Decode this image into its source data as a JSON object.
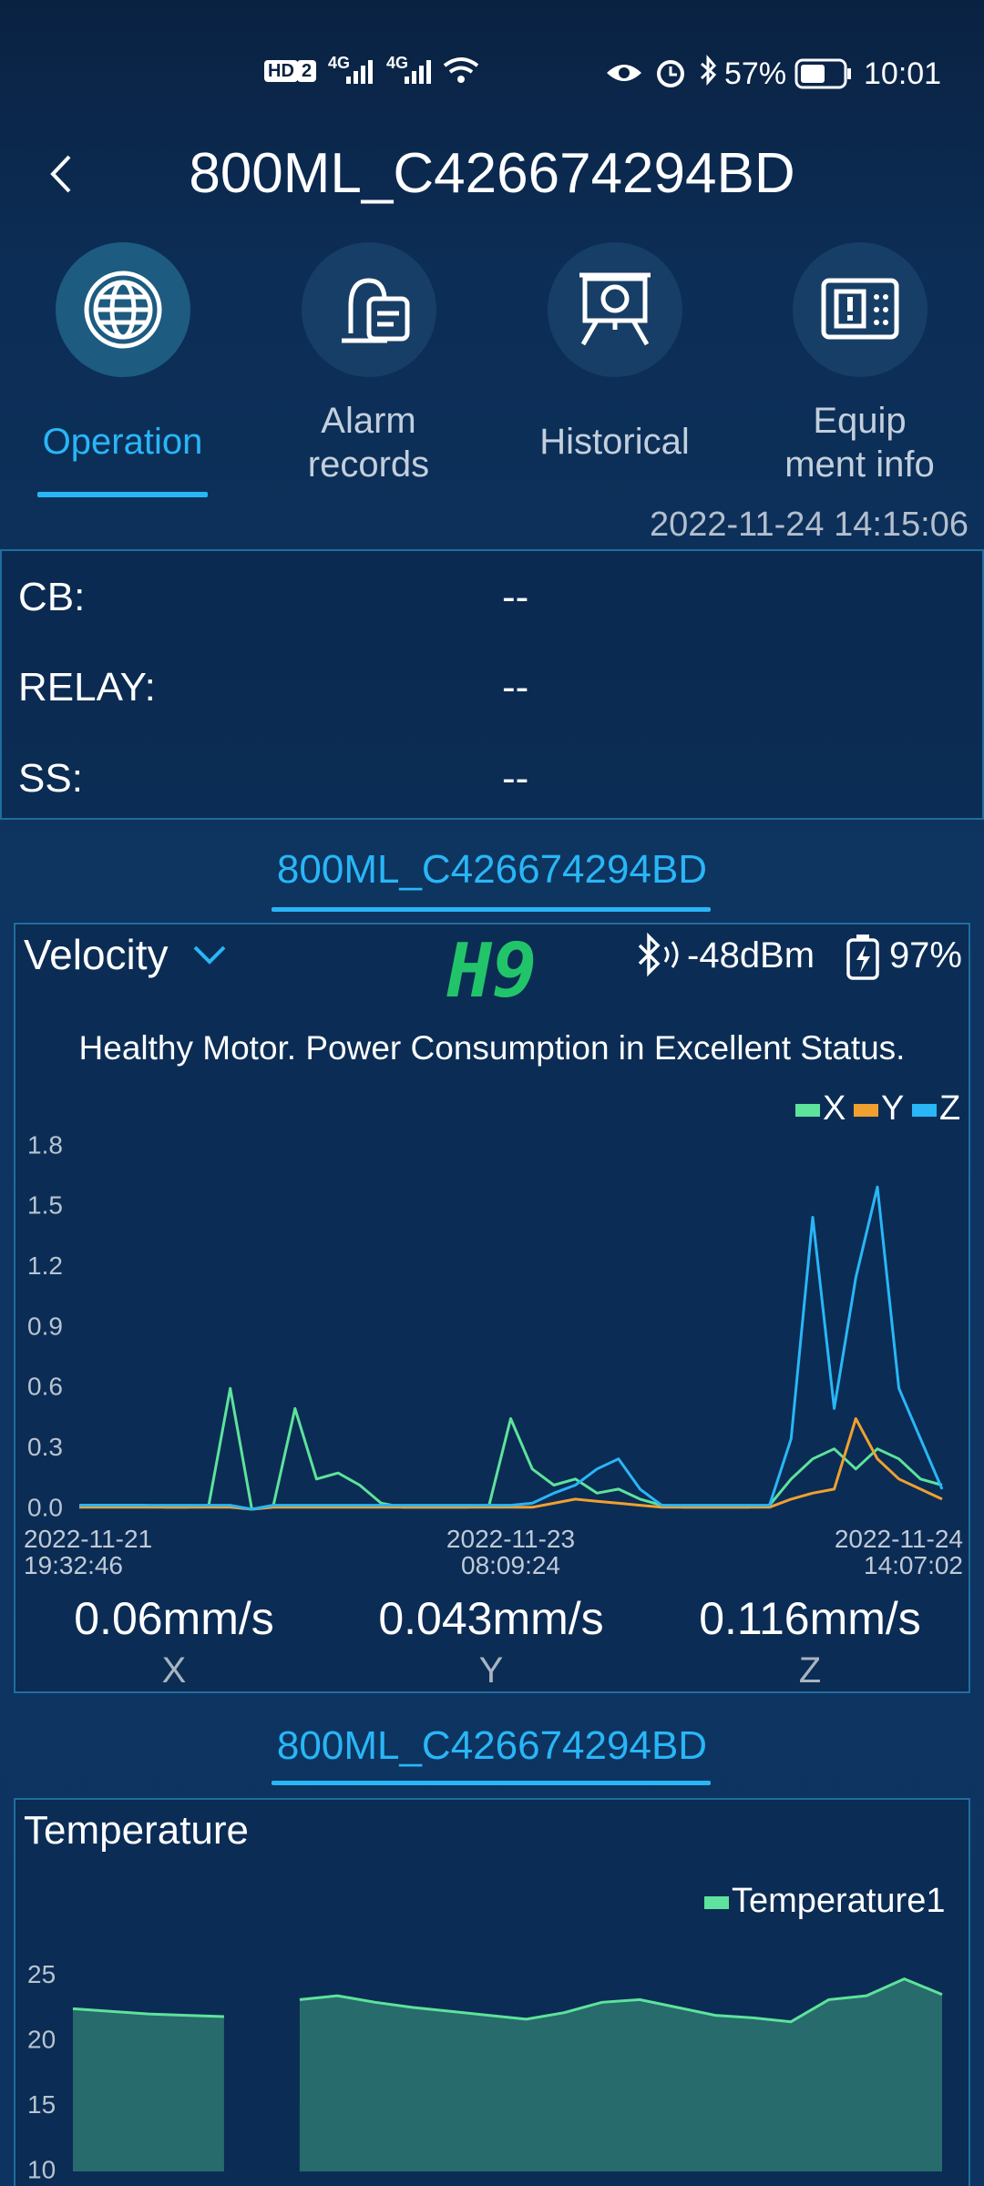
{
  "status_bar": {
    "network_labels": [
      "HD",
      "2",
      "4G",
      "4G"
    ],
    "battery": "57%",
    "time": "10:01"
  },
  "header": {
    "title": "800ML_C426674294BD"
  },
  "tabs": [
    {
      "label": "Operation"
    },
    {
      "label": "Alarm records"
    },
    {
      "label": "Historical"
    },
    {
      "label": "Equip ment info"
    }
  ],
  "timestamp": "2022-11-24 14:15:06",
  "status": [
    {
      "label": "CB:",
      "value": "--"
    },
    {
      "label": "RELAY:",
      "value": "--"
    },
    {
      "label": "SS:",
      "value": "--"
    }
  ],
  "velocity_panel": {
    "device": "800ML_C426674294BD",
    "mode": "Velocity",
    "code": "H9",
    "signal": "-48dBm",
    "battery": "97%",
    "message": "Healthy Motor. Power Consumption in Excellent Status.",
    "chart_data": {
      "type": "line",
      "categories": [
        "2022-11-21 19:32:46",
        null,
        null,
        null,
        null,
        null,
        null,
        null,
        null,
        null,
        null,
        null,
        null,
        null,
        null,
        null,
        null,
        null,
        null,
        null,
        "2022-11-23 08:09:24",
        null,
        null,
        null,
        null,
        null,
        null,
        null,
        null,
        null,
        null,
        null,
        null,
        null,
        null,
        null,
        null,
        null,
        null,
        null,
        "2022-11-24 14:07:02"
      ],
      "series": [
        {
          "name": "X",
          "color": "#5de39b",
          "values": [
            0.02,
            0.02,
            0.02,
            0.02,
            0.01,
            0.01,
            0.02,
            0.6,
            0.0,
            0.02,
            0.5,
            0.15,
            0.18,
            0.12,
            0.03,
            0.01,
            0.01,
            0.01,
            0.01,
            0.02,
            0.45,
            0.2,
            0.12,
            0.15,
            0.08,
            0.1,
            0.05,
            0.02,
            0.01,
            0.01,
            0.01,
            0.01,
            0.02,
            0.15,
            0.25,
            0.3,
            0.2,
            0.3,
            0.25,
            0.15,
            0.12
          ]
        },
        {
          "name": "Y",
          "color": "#f0a030",
          "values": [
            0.01,
            0.01,
            0.01,
            0.01,
            0.01,
            0.01,
            0.01,
            0.01,
            0.0,
            0.01,
            0.01,
            0.01,
            0.01,
            0.01,
            0.01,
            0.01,
            0.01,
            0.01,
            0.01,
            0.01,
            0.01,
            0.01,
            0.03,
            0.05,
            0.04,
            0.03,
            0.02,
            0.01,
            0.01,
            0.01,
            0.01,
            0.01,
            0.01,
            0.05,
            0.08,
            0.1,
            0.45,
            0.25,
            0.15,
            0.1,
            0.05
          ]
        },
        {
          "name": "Z",
          "color": "#29b6f6",
          "values": [
            0.02,
            0.02,
            0.02,
            0.02,
            0.02,
            0.02,
            0.02,
            0.02,
            0.0,
            0.02,
            0.02,
            0.02,
            0.02,
            0.02,
            0.02,
            0.02,
            0.02,
            0.02,
            0.02,
            0.02,
            0.02,
            0.03,
            0.08,
            0.12,
            0.2,
            0.25,
            0.1,
            0.02,
            0.02,
            0.02,
            0.02,
            0.02,
            0.02,
            0.35,
            1.45,
            0.5,
            1.15,
            1.6,
            0.6,
            0.35,
            0.1
          ]
        }
      ],
      "ylim": [
        0,
        1.8
      ],
      "yticks": [
        {
          "value": 0,
          "label": "0.0"
        },
        0.3,
        0.6,
        0.9,
        1.2,
        1.5,
        1.8
      ]
    },
    "readings": [
      {
        "value": "0.06mm/s",
        "axis": "X"
      },
      {
        "value": "0.043mm/s",
        "axis": "Y"
      },
      {
        "value": "0.116mm/s",
        "axis": "Z"
      }
    ]
  },
  "temperature_panel": {
    "device": "800ML_C426674294BD",
    "chart_data": {
      "type": "area",
      "title": "Temperature",
      "series": [
        {
          "name": "Temperature1",
          "color": "#5de39b",
          "values": [
            22.5,
            22.3,
            22.1,
            22.0,
            21.9,
            null,
            23.2,
            23.5,
            23.0,
            22.6,
            22.3,
            22.0,
            21.7,
            22.2,
            23.0,
            23.2,
            22.6,
            22.0,
            21.8,
            21.5,
            23.2,
            23.5,
            24.8,
            23.6
          ]
        }
      ],
      "ylim": [
        10,
        27.5
      ],
      "yticks": [
        10,
        15,
        20,
        25
      ]
    }
  }
}
